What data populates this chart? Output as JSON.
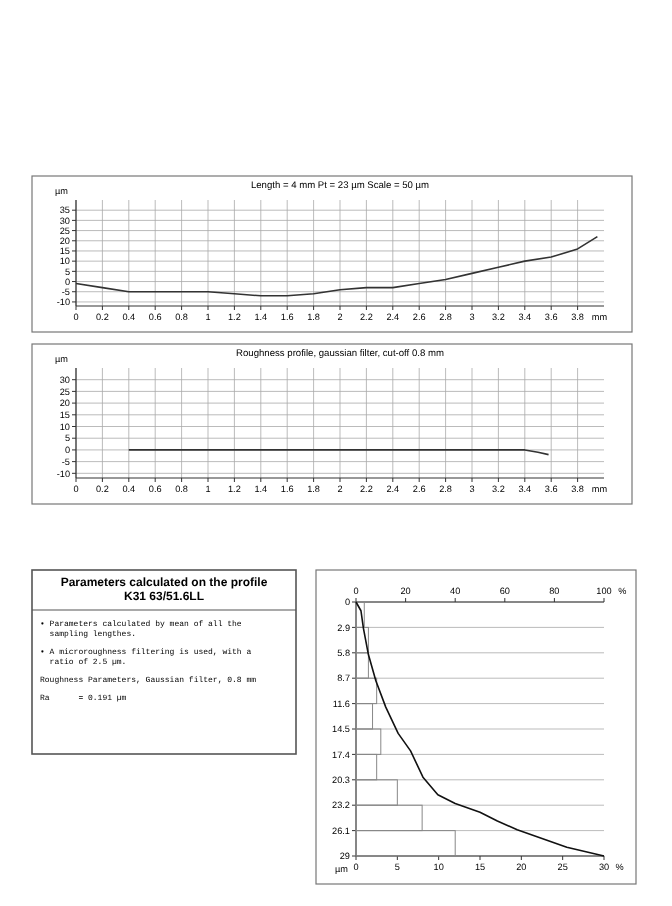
{
  "chart_data": [
    {
      "type": "line",
      "title": "Length = 4 mm  Pt = 23 µm  Scale = 50 µm",
      "ylabel": "µm",
      "xlabel": "mm",
      "xlim": [
        0,
        4
      ],
      "xticks": [
        0,
        0.2,
        0.4,
        0.6,
        0.8,
        1,
        1.2,
        1.4,
        1.6,
        1.8,
        2,
        2.2,
        2.4,
        2.6,
        2.8,
        3,
        3.2,
        3.4,
        3.6,
        3.8
      ],
      "ylim": [
        -12,
        40
      ],
      "yticks": [
        -10,
        -5,
        0,
        5,
        10,
        15,
        20,
        25,
        30,
        35
      ],
      "grid": true,
      "series": [
        {
          "color": "#333333",
          "x": [
            0,
            0.2,
            0.4,
            0.6,
            0.8,
            1,
            1.2,
            1.4,
            1.6,
            1.8,
            2,
            2.2,
            2.4,
            2.6,
            2.8,
            3,
            3.2,
            3.4,
            3.6,
            3.8,
            3.95
          ],
          "values": [
            -1,
            -3,
            -5,
            -5,
            -5,
            -5,
            -6,
            -7,
            -7,
            -6,
            -4,
            -3,
            -3,
            -1,
            1,
            4,
            7,
            10,
            12,
            16,
            22
          ]
        }
      ]
    },
    {
      "type": "line",
      "title": "Roughness profile, gaussian filter, cut-off 0.8 mm",
      "ylabel": "µm",
      "xlabel": "mm",
      "xlim": [
        0,
        4
      ],
      "xticks": [
        0,
        0.2,
        0.4,
        0.6,
        0.8,
        1,
        1.2,
        1.4,
        1.6,
        1.8,
        2,
        2.2,
        2.4,
        2.6,
        2.8,
        3,
        3.2,
        3.4,
        3.6,
        3.8
      ],
      "ylim": [
        -12,
        35
      ],
      "yticks": [
        -10,
        -5,
        0,
        5,
        10,
        15,
        20,
        25,
        30
      ],
      "grid": true,
      "series": [
        {
          "color": "#333333",
          "x": [
            0.4,
            0.8,
            1.2,
            1.6,
            2,
            2.4,
            2.8,
            3.2,
            3.4,
            3.5,
            3.58
          ],
          "values": [
            0,
            0,
            0,
            0,
            0,
            0,
            0,
            0,
            0,
            -1,
            -2
          ]
        }
      ]
    },
    {
      "type": "other",
      "title": "Parameters calculated on the profile\nK31 63/51.6LL",
      "annotations": [
        "• Parameters calculated by mean of all the\n  sampling lengthes.",
        "• A microroughness filtering is used, with a\n  ratio of 2.5 µm.",
        "Roughness Parameters, Gaussian filter, 0.8 mm",
        "Ra      = 0.191 µm"
      ]
    },
    {
      "type": "line",
      "orientation": "horizontal",
      "ylabel": "µm",
      "xlim": [
        0,
        30
      ],
      "xlabel": "%",
      "x2label": "%",
      "xticks": [
        0,
        5,
        10,
        15,
        20,
        25,
        30
      ],
      "x2lim": [
        0,
        100
      ],
      "x2ticks": [
        0,
        20,
        40,
        60,
        80,
        100
      ],
      "ylim": [
        29,
        0
      ],
      "yticks": [
        0,
        2.9,
        5.8,
        8.7,
        11.6,
        14.5,
        17.4,
        20.3,
        23.2,
        26.1,
        29
      ],
      "grid": "y",
      "series": [
        {
          "type": "histogram",
          "color": "#888888",
          "bins": [
            0,
            2.9,
            5.8,
            8.7,
            11.6,
            14.5,
            17.4,
            20.3,
            23.2,
            26.1,
            29
          ],
          "values": [
            1,
            1.5,
            1.5,
            2.5,
            2,
            3,
            2.5,
            5,
            8,
            12
          ]
        },
        {
          "type": "line",
          "axis": "x2",
          "color": "#111111",
          "x": [
            0,
            1,
            3,
            6,
            9,
            12,
            15,
            17,
            20,
            22,
            23,
            24,
            25,
            26,
            27,
            28,
            29
          ],
          "values": [
            0,
            2,
            3,
            5,
            8,
            12,
            17,
            22,
            27,
            33,
            40,
            50,
            57,
            65,
            75,
            85,
            100
          ]
        }
      ]
    }
  ]
}
